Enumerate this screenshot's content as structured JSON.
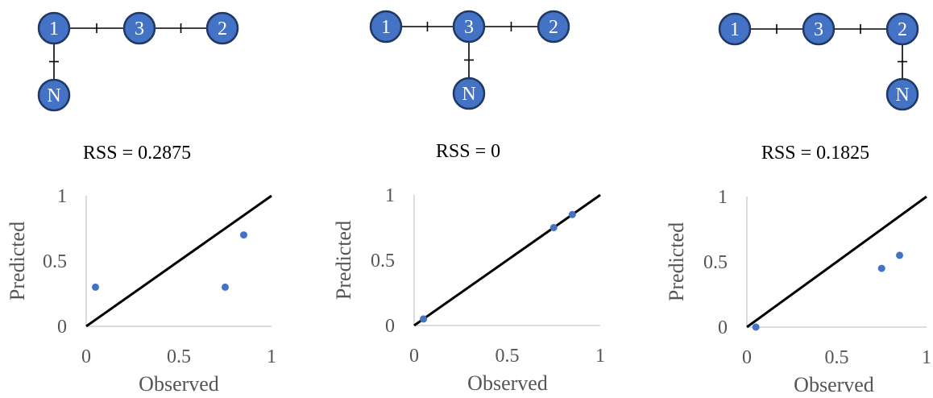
{
  "panels": [
    {
      "graph": {
        "nodes": [
          "1",
          "3",
          "2",
          "N"
        ],
        "edges": [
          [
            "1",
            "3"
          ],
          [
            "3",
            "2"
          ],
          [
            "1",
            "N"
          ]
        ]
      },
      "rss_label": "RSS = 0.2875"
    },
    {
      "graph": {
        "nodes": [
          "1",
          "3",
          "2",
          "N"
        ],
        "edges": [
          [
            "1",
            "3"
          ],
          [
            "3",
            "2"
          ],
          [
            "3",
            "N"
          ]
        ]
      },
      "rss_label": "RSS = 0"
    },
    {
      "graph": {
        "nodes": [
          "1",
          "3",
          "2",
          "N"
        ],
        "edges": [
          [
            "1",
            "3"
          ],
          [
            "3",
            "2"
          ],
          [
            "2",
            "N"
          ]
        ]
      },
      "rss_label": "RSS = 0.1825"
    }
  ],
  "colors": {
    "node_fill": "#4472C4",
    "node_stroke": "#1F3864",
    "point": "#4472C4",
    "reference_line": "#000000"
  },
  "chart_data": [
    {
      "type": "scatter",
      "xlabel": "Observed",
      "ylabel": "Predicted",
      "xlim": [
        0,
        1
      ],
      "ylim": [
        0,
        1
      ],
      "x_ticks": [
        "0",
        "0.5",
        "1"
      ],
      "y_ticks": [
        "0",
        "0.5",
        "1"
      ],
      "reference_line": "y = x",
      "grid": false,
      "points": [
        {
          "x": 0.05,
          "y": 0.3
        },
        {
          "x": 0.75,
          "y": 0.3
        },
        {
          "x": 0.85,
          "y": 0.7
        }
      ]
    },
    {
      "type": "scatter",
      "xlabel": "Observed",
      "ylabel": "Predicted",
      "xlim": [
        0,
        1
      ],
      "ylim": [
        0,
        1
      ],
      "x_ticks": [
        "0",
        "0.5",
        "1"
      ],
      "y_ticks": [
        "0",
        "0.5",
        "1"
      ],
      "reference_line": "y = x",
      "grid": false,
      "points": [
        {
          "x": 0.05,
          "y": 0.05
        },
        {
          "x": 0.75,
          "y": 0.75
        },
        {
          "x": 0.85,
          "y": 0.85
        }
      ]
    },
    {
      "type": "scatter",
      "xlabel": "Observed",
      "ylabel": "Predicted",
      "xlim": [
        0,
        1
      ],
      "ylim": [
        0,
        1
      ],
      "x_ticks": [
        "0",
        "0.5",
        "1"
      ],
      "y_ticks": [
        "0",
        "0.5",
        "1"
      ],
      "reference_line": "y = x",
      "grid": false,
      "points": [
        {
          "x": 0.05,
          "y": 0.0
        },
        {
          "x": 0.75,
          "y": 0.45
        },
        {
          "x": 0.85,
          "y": 0.55
        }
      ]
    }
  ]
}
